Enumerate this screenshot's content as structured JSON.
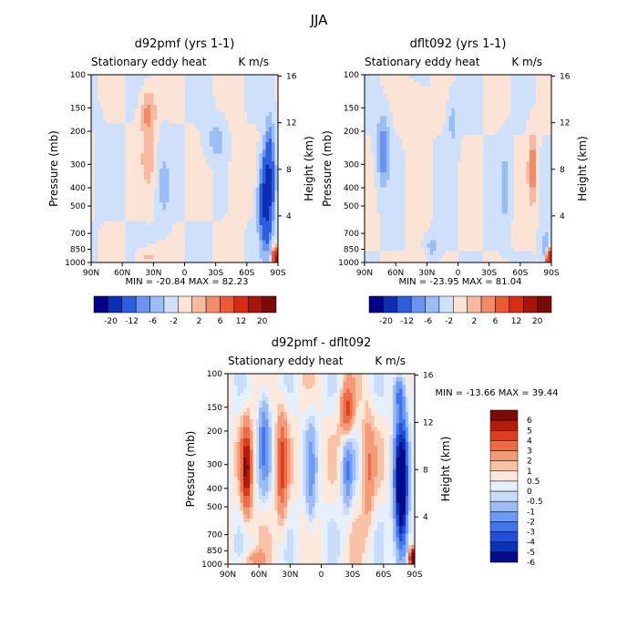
{
  "chart_data": {
    "type": "heatmap",
    "title": "JJA",
    "colors": {
      "main": [
        "#00008b",
        "#0a2fb4",
        "#2d5ee0",
        "#6a94f0",
        "#9bbdf5",
        "#cfe1fa",
        "#fbe3d6",
        "#f9b9a1",
        "#f48a68",
        "#ea5a34",
        "#d72d12",
        "#a8140a",
        "#7a0a05"
      ],
      "diff": [
        "#000c8c",
        "#0a33b8",
        "#1f4fdc",
        "#3e76ee",
        "#6e9af3",
        "#9dbcf6",
        "#c9dcfa",
        "#e6effc",
        "#fde8dc",
        "#f9c2a6",
        "#f49a76",
        "#ec6c45",
        "#dc3d1c",
        "#b41c0a",
        "#7d0a04"
      ]
    },
    "panels": [
      {
        "name": "d92pmf",
        "title": "d92pmf (yrs 1-1)",
        "subtitle": "Stationary eddy heat",
        "units": "K m/s",
        "ylabel": "Pressure (mb)",
        "ylabel_right": "Height (km)",
        "x_ticks": [
          "90N",
          "60N",
          "30N",
          "0",
          "30S",
          "60S",
          "90S"
        ],
        "p_ticks": [
          "100",
          "150",
          "200",
          "300",
          "400",
          "500",
          "700",
          "850",
          "1000"
        ],
        "h_ticks": [
          "16",
          "12",
          "8",
          "4"
        ],
        "stats": "MIN = -20.84   MAX =  82.23",
        "colorbar_labels": [
          "-20",
          "-12",
          "-6",
          "-2",
          "2",
          "6",
          "12",
          "20"
        ]
      },
      {
        "name": "dflt092",
        "title": "dflt092 (yrs 1-1)",
        "subtitle": "Stationary eddy heat",
        "units": "K m/s",
        "ylabel": "Pressure (mb)",
        "ylabel_right": "Height (km)",
        "x_ticks": [
          "90N",
          "60N",
          "30N",
          "0",
          "30S",
          "60S",
          "90S"
        ],
        "p_ticks": [
          "100",
          "150",
          "200",
          "300",
          "400",
          "500",
          "700",
          "850",
          "1000"
        ],
        "h_ticks": [
          "16",
          "12",
          "8",
          "4"
        ],
        "stats": "MIN = -23.95   MAX =  81.04",
        "colorbar_labels": [
          "-20",
          "-12",
          "-6",
          "-2",
          "2",
          "6",
          "12",
          "20"
        ]
      },
      {
        "name": "difference",
        "title": "d92pmf - dflt092",
        "subtitle": "Stationary eddy heat",
        "units": "K m/s",
        "ylabel": "Pressure (mb)",
        "ylabel_right": "Height (km)",
        "x_ticks": [
          "90N",
          "60N",
          "30N",
          "0",
          "30S",
          "60S",
          "90S"
        ],
        "p_ticks": [
          "100",
          "150",
          "200",
          "300",
          "400",
          "500",
          "700",
          "850",
          "1000"
        ],
        "h_ticks": [
          "16",
          "12",
          "8",
          "4"
        ],
        "stats": "MIN = -13.66   MAX =  39.44",
        "colorbar_labels": [
          "6",
          "5",
          "4",
          "3",
          "2",
          "1",
          "0.5",
          "0",
          "-0.5",
          "-1",
          "-2",
          "-3",
          "-4",
          "-5",
          "-6"
        ]
      }
    ]
  }
}
